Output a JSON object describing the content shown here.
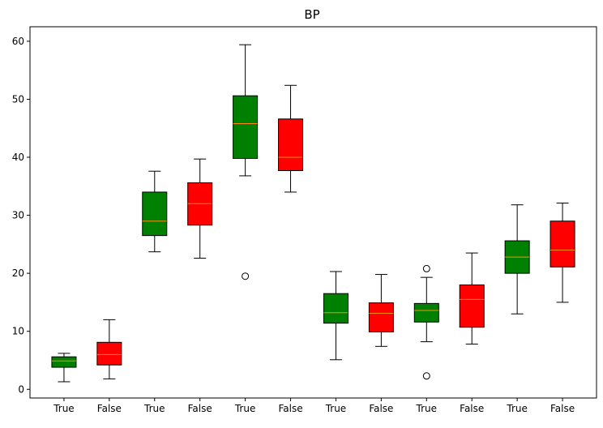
{
  "chart_data": {
    "type": "box",
    "title": "BP",
    "xlabel": "",
    "ylabel": "",
    "ylim": [
      -1.5,
      62.5
    ],
    "yticks": [
      0,
      10,
      20,
      30,
      40,
      50,
      60
    ],
    "grid": false,
    "boxes": [
      {
        "label": "True",
        "color": "#008000",
        "whisker_low": 1.3,
        "q1": 3.8,
        "median": 4.9,
        "q3": 5.6,
        "whisker_high": 6.2,
        "outliers": []
      },
      {
        "label": "False",
        "color": "#ff0000",
        "whisker_low": 1.8,
        "q1": 4.2,
        "median": 6.0,
        "q3": 8.1,
        "whisker_high": 12.0,
        "outliers": []
      },
      {
        "label": "True",
        "color": "#008000",
        "whisker_low": 23.7,
        "q1": 26.5,
        "median": 29.0,
        "q3": 34.0,
        "whisker_high": 37.6,
        "outliers": []
      },
      {
        "label": "False",
        "color": "#ff0000",
        "whisker_low": 22.6,
        "q1": 28.3,
        "median": 32.0,
        "q3": 35.6,
        "whisker_high": 39.7,
        "outliers": []
      },
      {
        "label": "True",
        "color": "#008000",
        "whisker_low": 36.8,
        "q1": 39.8,
        "median": 45.8,
        "q3": 50.6,
        "whisker_high": 59.4,
        "outliers": [
          19.5
        ]
      },
      {
        "label": "False",
        "color": "#ff0000",
        "whisker_low": 34.0,
        "q1": 37.7,
        "median": 40.0,
        "q3": 46.6,
        "whisker_high": 52.4,
        "outliers": []
      },
      {
        "label": "True",
        "color": "#008000",
        "whisker_low": 5.1,
        "q1": 11.4,
        "median": 13.2,
        "q3": 16.5,
        "whisker_high": 20.3,
        "outliers": []
      },
      {
        "label": "False",
        "color": "#ff0000",
        "whisker_low": 7.4,
        "q1": 9.9,
        "median": 13.1,
        "q3": 14.9,
        "whisker_high": 19.8,
        "outliers": []
      },
      {
        "label": "True",
        "color": "#008000",
        "whisker_low": 8.2,
        "q1": 11.6,
        "median": 13.6,
        "q3": 14.8,
        "whisker_high": 19.3,
        "outliers": [
          20.8,
          2.3
        ]
      },
      {
        "label": "False",
        "color": "#ff0000",
        "whisker_low": 7.8,
        "q1": 10.7,
        "median": 15.5,
        "q3": 18.0,
        "whisker_high": 23.5,
        "outliers": []
      },
      {
        "label": "True",
        "color": "#008000",
        "whisker_low": 13.0,
        "q1": 20.0,
        "median": 22.8,
        "q3": 25.6,
        "whisker_high": 31.8,
        "outliers": []
      },
      {
        "label": "False",
        "color": "#ff0000",
        "whisker_low": 15.0,
        "q1": 21.1,
        "median": 24.0,
        "q3": 29.0,
        "whisker_high": 32.1,
        "outliers": []
      }
    ],
    "median_color": "#ff8c00"
  }
}
